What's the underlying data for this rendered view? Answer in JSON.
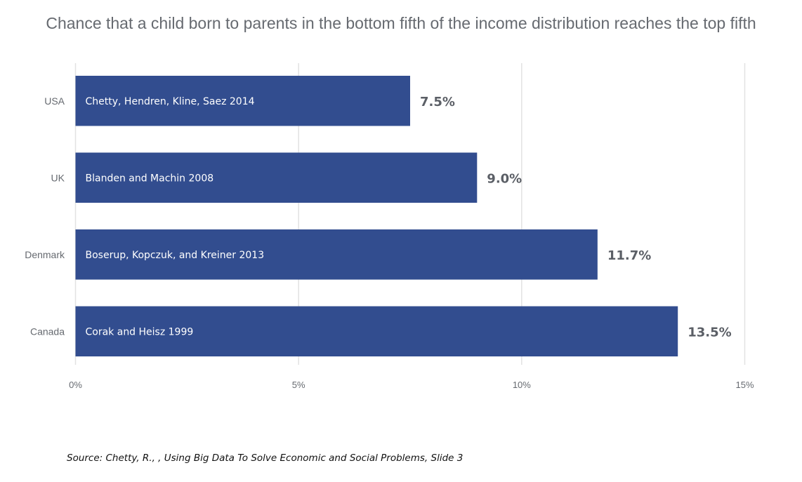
{
  "chart_data": {
    "type": "bar",
    "orientation": "horizontal",
    "title": "Chance that a child born to parents in the bottom fifth of the income distribution reaches the top fifth",
    "categories": [
      "USA",
      "UK",
      "Denmark",
      "Canada"
    ],
    "values": [
      7.5,
      9.0,
      11.7,
      13.5
    ],
    "value_labels": [
      "7.5%",
      "9.0%",
      "11.7%",
      "13.5%"
    ],
    "bar_annotations": [
      "Chetty, Hendren, Kline, Saez 2014",
      "Blanden and Machin 2008",
      "Boserup, Kopczuk, and Kreiner 2013",
      "Corak and Heisz 1999"
    ],
    "xlim": [
      0,
      15
    ],
    "xticks": [
      0,
      5,
      10,
      15
    ],
    "xtick_labels": [
      "0%",
      "5%",
      "10%",
      "15%"
    ],
    "grid": true,
    "bar_color": "#324d8f"
  },
  "source": "Source: Chetty, R., , Using Big Data To Solve Economic and Social Problems, Slide 3"
}
